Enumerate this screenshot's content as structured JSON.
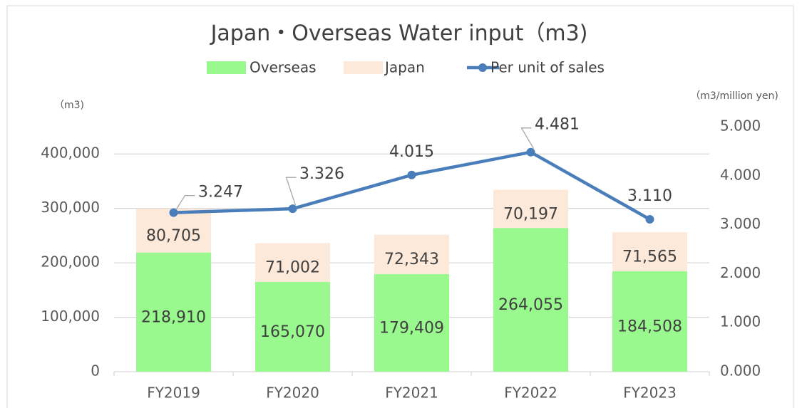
{
  "chart_data": {
    "type": "bar",
    "stacked": true,
    "title": "Japan・Overseas Water input（m3)",
    "y_label": "（m3)",
    "y2_label": "（m3/million yen)",
    "categories": [
      "FY2019",
      "FY2020",
      "FY2021",
      "FY2022",
      "FY2023"
    ],
    "series": [
      {
        "name": "Overseas",
        "color": "#99f98f",
        "values": [
          218910,
          165070,
          179409,
          264055,
          184508
        ],
        "value_labels": [
          "218,910",
          "165,070",
          "179,409",
          "264,055",
          "184,508"
        ]
      },
      {
        "name": "Japan",
        "color": "#fde9d9",
        "values": [
          80705,
          71002,
          72343,
          70197,
          71565
        ],
        "value_labels": [
          "80,705",
          "71,002",
          "72,343",
          "70,197",
          "71,565"
        ]
      },
      {
        "name": "Per unit of sales",
        "type": "line",
        "axis": "y2",
        "color": "#4a7ebb",
        "values": [
          3.247,
          3.326,
          4.015,
          4.481,
          3.11
        ],
        "value_labels": [
          "3.247",
          "3.326",
          "4.015",
          "4.481",
          "3.110"
        ]
      }
    ],
    "ylim": [
      0,
      450000
    ],
    "yticks": [
      0,
      {
        "value": 100000,
        "label": "100,000"
      },
      {
        "value": 200000,
        "label": "200,000"
      },
      {
        "value": 300000,
        "label": "300,000"
      },
      {
        "value": 400000,
        "label": "400,000"
      }
    ],
    "y2lim": [
      0,
      5
    ],
    "y2ticks": [
      {
        "value": 0,
        "label": "0.000"
      },
      {
        "value": 1,
        "label": "1.000"
      },
      {
        "value": 2,
        "label": "2.000"
      },
      {
        "value": 3,
        "label": "3.000"
      },
      {
        "value": 4,
        "label": "4.000"
      },
      {
        "value": 5,
        "label": "5.000"
      }
    ],
    "grid": true,
    "legend": "top"
  }
}
